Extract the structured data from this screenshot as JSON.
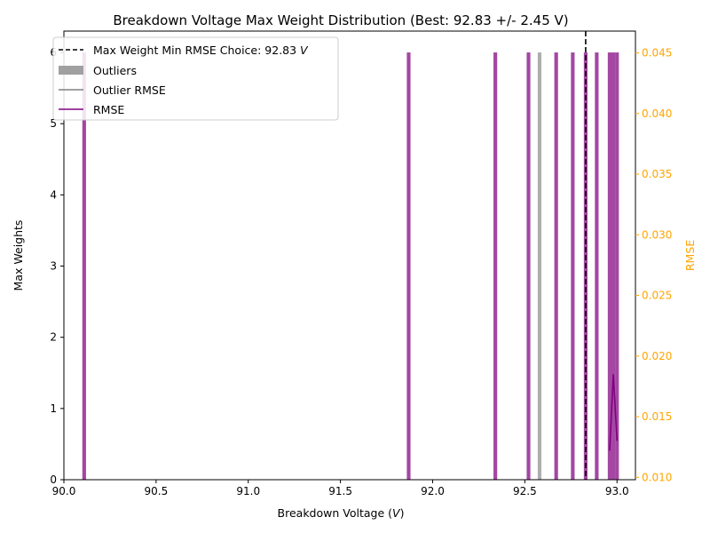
{
  "chart_data": {
    "type": "bar",
    "title": "Breakdown Voltage Max Weight Distribution (Best: 92.83 +/- 2.45 V)",
    "xlabel_main": "Breakdown Voltage (",
    "xlabel_unit": "V",
    "xlabel_close": ")",
    "ylabel": "Max Weights",
    "y2label": "RMSE",
    "xlim": [
      90.0,
      93.1
    ],
    "ylim": [
      0,
      6.3
    ],
    "y2lim": [
      0.0098,
      0.0468
    ],
    "xticks": [
      90.0,
      90.5,
      91.0,
      91.5,
      92.0,
      92.5,
      93.0
    ],
    "yticks": [
      0,
      1,
      2,
      3,
      4,
      5,
      6
    ],
    "y2ticks": [
      0.01,
      0.015,
      0.02,
      0.025,
      0.03,
      0.035,
      0.04,
      0.045
    ],
    "bar_width": 0.02,
    "series": [
      {
        "name": "RMSE",
        "kind": "bars",
        "color": "#800080",
        "x": [
          90.11,
          91.87,
          92.34,
          92.52,
          92.67,
          92.76,
          92.83,
          92.89,
          92.96,
          92.98,
          93.0
        ],
        "values": [
          6,
          6,
          6,
          6,
          6,
          6,
          6,
          6,
          6,
          6,
          6
        ]
      },
      {
        "name": "Outliers",
        "kind": "bars",
        "color": "#a0a0a0",
        "x": [
          92.58
        ],
        "values": [
          6
        ]
      },
      {
        "name": "RMSE",
        "kind": "line",
        "axis": "right",
        "color": "#800080",
        "x": [
          92.96,
          92.98,
          93.0
        ],
        "values": [
          0.0122,
          0.0185,
          0.013
        ]
      }
    ],
    "vline": {
      "x": 92.83,
      "color": "#000000",
      "style": "dashed"
    },
    "legend": {
      "placement": "top-left",
      "entries": [
        {
          "text_main": "Max Weight Min RMSE Choice: 92.83 ",
          "text_unit": "V",
          "marker": "dashed-line",
          "color": "#000000"
        },
        {
          "text_main": "Outliers",
          "marker": "patch",
          "color": "#a0a0a0"
        },
        {
          "text_main": "Outlier RMSE",
          "marker": "line",
          "color": "#808080"
        },
        {
          "text_main": "RMSE",
          "marker": "line",
          "color": "#800080"
        }
      ]
    },
    "colors": {
      "axis_right": "#ffa500",
      "axis": "#000000"
    }
  }
}
